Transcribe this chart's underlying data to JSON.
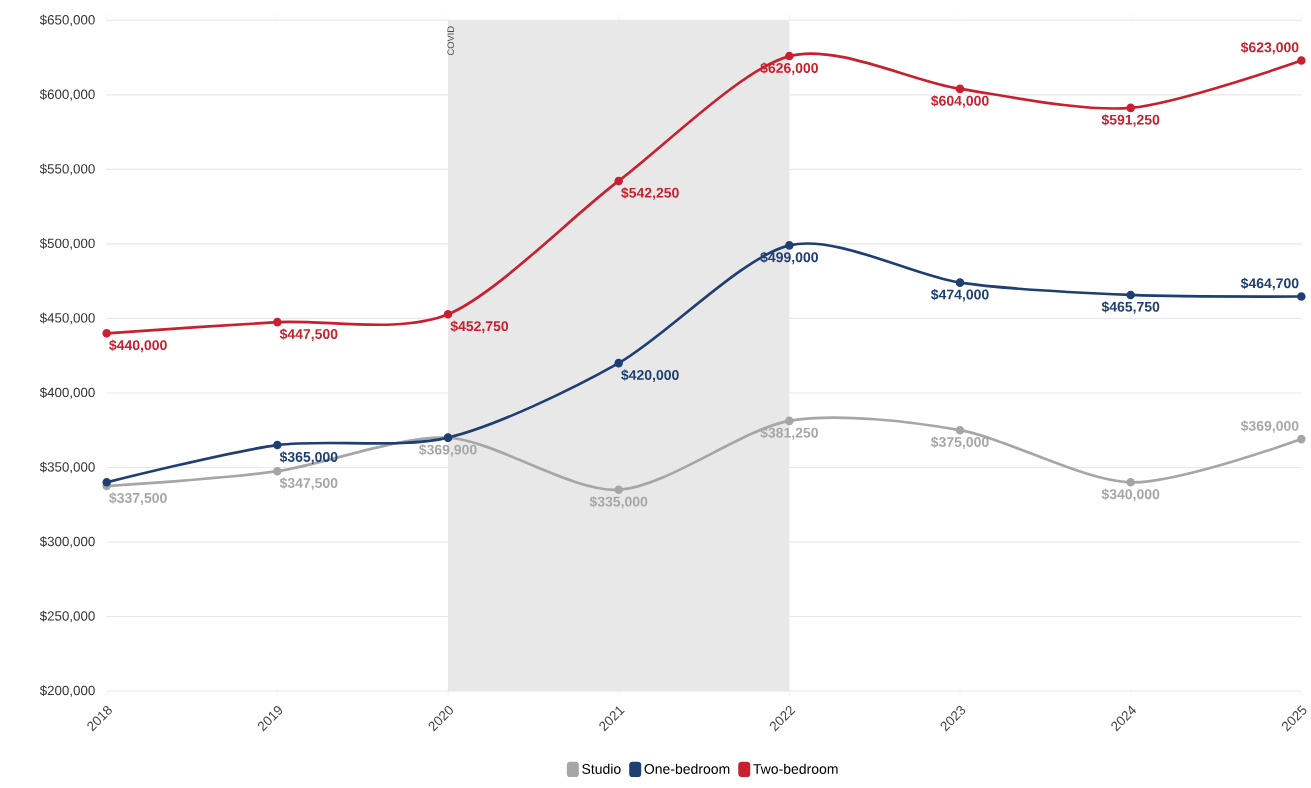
{
  "chart_data": {
    "type": "line",
    "x": [
      2018,
      2019,
      2020,
      2021,
      2022,
      2023,
      2024,
      2025
    ],
    "xlim": [
      2018,
      2025
    ],
    "xticks": [
      2018,
      2019,
      2020,
      2021,
      2022,
      2023,
      2024,
      2025
    ],
    "ylim": [
      200000,
      650000
    ],
    "yticks": [
      {
        "value": 200000,
        "label": "$200,000"
      },
      {
        "value": 250000,
        "label": "$250,000"
      },
      {
        "value": 300000,
        "label": "$300,000"
      },
      {
        "value": 350000,
        "label": "$350,000"
      },
      {
        "value": 400000,
        "label": "$400,000"
      },
      {
        "value": 450000,
        "label": "$450,000"
      },
      {
        "value": 500000,
        "label": "$500,000"
      },
      {
        "value": 550000,
        "label": "$550,000"
      },
      {
        "value": 600000,
        "label": "$600,000"
      },
      {
        "value": 650000,
        "label": "$650,000"
      }
    ],
    "series": [
      {
        "name": "Studio",
        "color": "#a6a6a6",
        "values": [
          337500,
          347500,
          369900,
          335000,
          381250,
          375000,
          340000,
          369000
        ],
        "value_labels": [
          "$337,500",
          "$347,500",
          "$369,900",
          "$335,000",
          "$381,250",
          "$375,000",
          "$340,000",
          "$369,000"
        ]
      },
      {
        "name": "One-bedroom",
        "color": "#1f3f73",
        "values": [
          340000,
          365000,
          370000,
          420000,
          499000,
          474000,
          465750,
          464700
        ],
        "value_labels": [
          null,
          "$365,000",
          null,
          "$420,000",
          "$499,000",
          "$474,000",
          "$465,750",
          "$464,700"
        ]
      },
      {
        "name": "Two-bedroom",
        "color": "#c8202f",
        "values": [
          440000,
          447500,
          452750,
          542250,
          626000,
          604000,
          591250,
          623000
        ],
        "value_labels": [
          "$440,000",
          "$447,500",
          "$452,750",
          "$542,250",
          "$626,000",
          "$604,000",
          "$591,250",
          "$623,000"
        ]
      }
    ],
    "bands": [
      {
        "axis": "x",
        "from": 2020,
        "to": 2022,
        "label": "COVID",
        "color": "#e8e8e8"
      }
    ],
    "grid": "y",
    "legend": "bottom",
    "marker": "circle",
    "line_style": "solid"
  }
}
